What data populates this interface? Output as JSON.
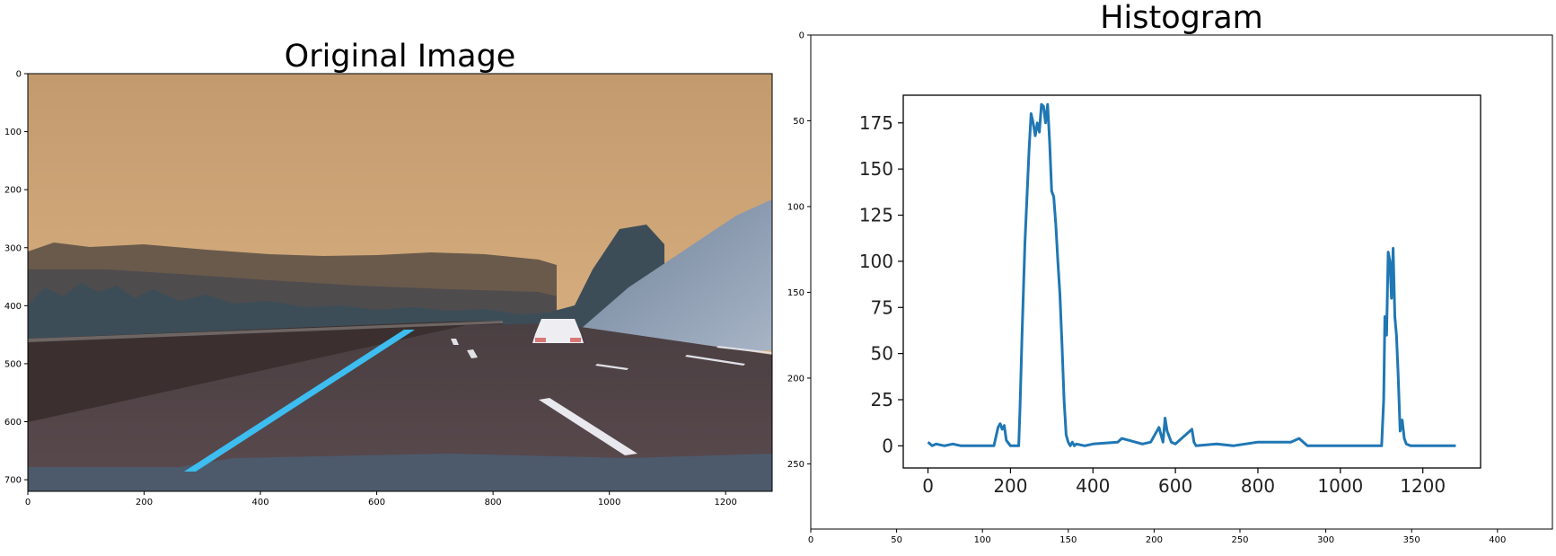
{
  "chart_data": [
    {
      "type": "image",
      "title": "Original Image",
      "xlim": [
        0,
        1280
      ],
      "ylim": [
        720,
        0
      ],
      "xticks": [
        0,
        200,
        400,
        600,
        800,
        1000,
        1200
      ],
      "yticks": [
        0,
        100,
        200,
        300,
        400,
        500,
        600,
        700
      ]
    },
    {
      "type": "image",
      "title": "Histogram",
      "xlim": [
        0,
        432
      ],
      "ylim": [
        288,
        0
      ],
      "xticks": [
        0,
        50,
        100,
        150,
        200,
        250,
        300,
        350,
        400
      ],
      "yticks": [
        0,
        50,
        100,
        150,
        200,
        250
      ],
      "embedded_plot": {
        "type": "line",
        "xlim": [
          -60,
          1340
        ],
        "ylim": [
          -12,
          190
        ],
        "xticks": [
          0,
          200,
          400,
          600,
          800,
          1000,
          1200
        ],
        "yticks": [
          0,
          25,
          50,
          75,
          100,
          125,
          150,
          175
        ],
        "line_color": "#1f77b4",
        "series": [
          {
            "x": [
              0,
              10,
              20,
              40,
              60,
              80,
              120,
              160,
              170,
              175,
              180,
              185,
              190,
              200,
              210,
              220,
              223,
              228,
              235,
              245,
              250,
              255,
              260,
              265,
              270,
              275,
              280,
              285,
              290,
              295,
              300,
              305,
              310,
              315,
              320,
              325,
              330,
              335,
              340,
              345,
              350,
              355,
              360,
              380,
              400,
              460,
              470,
              520,
              540,
              560,
              570,
              575,
              580,
              590,
              600,
              640,
              645,
              650,
              700,
              740,
              800,
              880,
              900,
              920,
              1000,
              1060,
              1090,
              1100,
              1105,
              1108,
              1112,
              1116,
              1120,
              1124,
              1128,
              1132,
              1136,
              1140,
              1145,
              1150,
              1155,
              1160,
              1170,
              1180,
              1200,
              1280
            ],
            "y": [
              2,
              0,
              1,
              0,
              1,
              0,
              0,
              0,
              10,
              12,
              9,
              11,
              3,
              0,
              0,
              0,
              20,
              60,
              110,
              160,
              180,
              175,
              168,
              175,
              170,
              185,
              184,
              175,
              185,
              165,
              138,
              135,
              120,
              100,
              82,
              55,
              25,
              6,
              2,
              0,
              2,
              0,
              1,
              0,
              1,
              2,
              4,
              1,
              2,
              10,
              2,
              15,
              8,
              2,
              1,
              9,
              2,
              0,
              1,
              0,
              2,
              2,
              4,
              0,
              0,
              0,
              0,
              0,
              25,
              70,
              60,
              105,
              100,
              80,
              107,
              70,
              60,
              40,
              8,
              14,
              4,
              1,
              0,
              0,
              0,
              0
            ]
          }
        ]
      }
    }
  ]
}
